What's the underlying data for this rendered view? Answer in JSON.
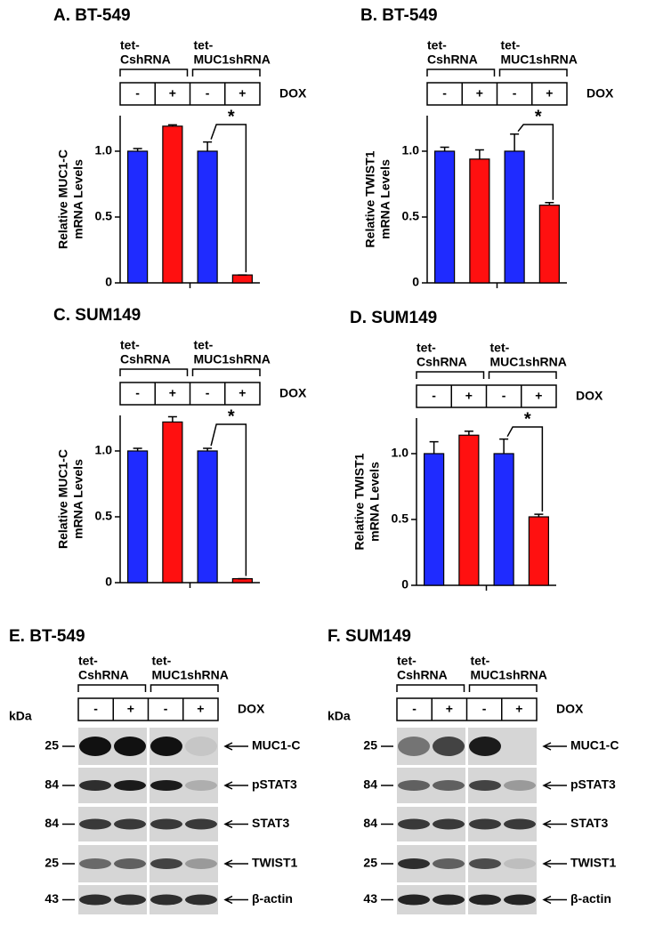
{
  "chart_data": [
    {
      "type": "bar",
      "title": "A.  BT-549",
      "groups": [
        [
          "tet-",
          "CshRNA"
        ],
        [
          "tet-",
          "MUC1shRNA"
        ]
      ],
      "categories": [
        "-",
        "+",
        "-",
        "+"
      ],
      "treatment": "DOX",
      "y_label": [
        "Relative MUC1-C",
        "mRNA Levels"
      ],
      "values": [
        1.0,
        1.19,
        1.0,
        0.06
      ],
      "errors": [
        0.02,
        0.01,
        0.07,
        0.0
      ],
      "colors": [
        "#1f2bff",
        "#ff1010",
        "#1f2bff",
        "#ff1010"
      ],
      "ylim": [
        0,
        1.27
      ],
      "yticks": [
        0,
        0.5,
        {
          "value": 1,
          "label": "1.0"
        }
      ],
      "annotation": "*"
    },
    {
      "type": "bar",
      "title": "B.  BT-549",
      "groups": [
        [
          "tet-",
          "CshRNA"
        ],
        [
          "tet-",
          "MUC1shRNA"
        ]
      ],
      "categories": [
        "-",
        "+",
        "-",
        "+"
      ],
      "treatment": "DOX",
      "y_label": [
        "Relative TWIST1",
        "mRNA Levels"
      ],
      "values": [
        1.0,
        0.94,
        1.0,
        0.59
      ],
      "errors": [
        0.03,
        0.07,
        0.13,
        0.02
      ],
      "colors": [
        "#1f2bff",
        "#ff1010",
        "#1f2bff",
        "#ff1010"
      ],
      "ylim": [
        0,
        1.27
      ],
      "yticks": [
        0,
        0.5,
        {
          "value": 1,
          "label": "1.0"
        }
      ],
      "annotation": "*"
    },
    {
      "type": "bar",
      "title": "C.  SUM149",
      "groups": [
        [
          "tet-",
          "CshRNA"
        ],
        [
          "tet-",
          "MUC1shRNA"
        ]
      ],
      "categories": [
        "-",
        "+",
        "-",
        "+"
      ],
      "treatment": "DOX",
      "y_label": [
        "Relative MUC1-C",
        "mRNA Levels"
      ],
      "values": [
        1.0,
        1.22,
        1.0,
        0.03
      ],
      "errors": [
        0.02,
        0.04,
        0.02,
        0.0
      ],
      "colors": [
        "#1f2bff",
        "#ff1010",
        "#1f2bff",
        "#ff1010"
      ],
      "ylim": [
        0,
        1.27
      ],
      "yticks": [
        0,
        0.5,
        {
          "value": 1,
          "label": "1.0"
        }
      ],
      "annotation": "*"
    },
    {
      "type": "bar",
      "title": "D.  SUM149",
      "groups": [
        [
          "tet-",
          "CshRNA"
        ],
        [
          "tet-",
          "MUC1shRNA"
        ]
      ],
      "categories": [
        "-",
        "+",
        "-",
        "+"
      ],
      "treatment": "DOX",
      "y_label": [
        "Relative TWIST1",
        "mRNA Levels"
      ],
      "values": [
        1.0,
        1.14,
        1.0,
        0.52
      ],
      "errors": [
        0.09,
        0.03,
        0.11,
        0.02
      ],
      "colors": [
        "#1f2bff",
        "#ff1010",
        "#1f2bff",
        "#ff1010"
      ],
      "ylim": [
        0,
        1.27
      ],
      "yticks": [
        0,
        0.5,
        {
          "value": 1,
          "label": "1.0"
        }
      ],
      "annotation": "*"
    }
  ],
  "blots": [
    {
      "title": "E.  BT-549",
      "groups": [
        [
          "tet-",
          "CshRNA"
        ],
        [
          "tet-",
          "MUC1shRNA"
        ]
      ],
      "lanes": [
        "-",
        "+",
        "-",
        "+"
      ],
      "treatment": "DOX",
      "unit": "kDa",
      "rows": [
        {
          "marker": "25",
          "protein": "MUC1-C"
        },
        {
          "marker": "84",
          "protein": "pSTAT3"
        },
        {
          "marker": "84",
          "protein": "STAT3"
        },
        {
          "marker": "25",
          "protein": "TWIST1"
        },
        {
          "marker": "43",
          "protein": "β-actin"
        }
      ]
    },
    {
      "title": "F.  SUM149",
      "groups": [
        [
          "tet-",
          "CshRNA"
        ],
        [
          "tet-",
          "MUC1shRNA"
        ]
      ],
      "lanes": [
        "-",
        "+",
        "-",
        "+"
      ],
      "treatment": "DOX",
      "unit": "kDa",
      "rows": [
        {
          "marker": "25",
          "protein": "MUC1-C"
        },
        {
          "marker": "84",
          "protein": "pSTAT3"
        },
        {
          "marker": "84",
          "protein": "STAT3"
        },
        {
          "marker": "25",
          "protein": "TWIST1"
        },
        {
          "marker": "43",
          "protein": "β-actin"
        }
      ]
    }
  ]
}
